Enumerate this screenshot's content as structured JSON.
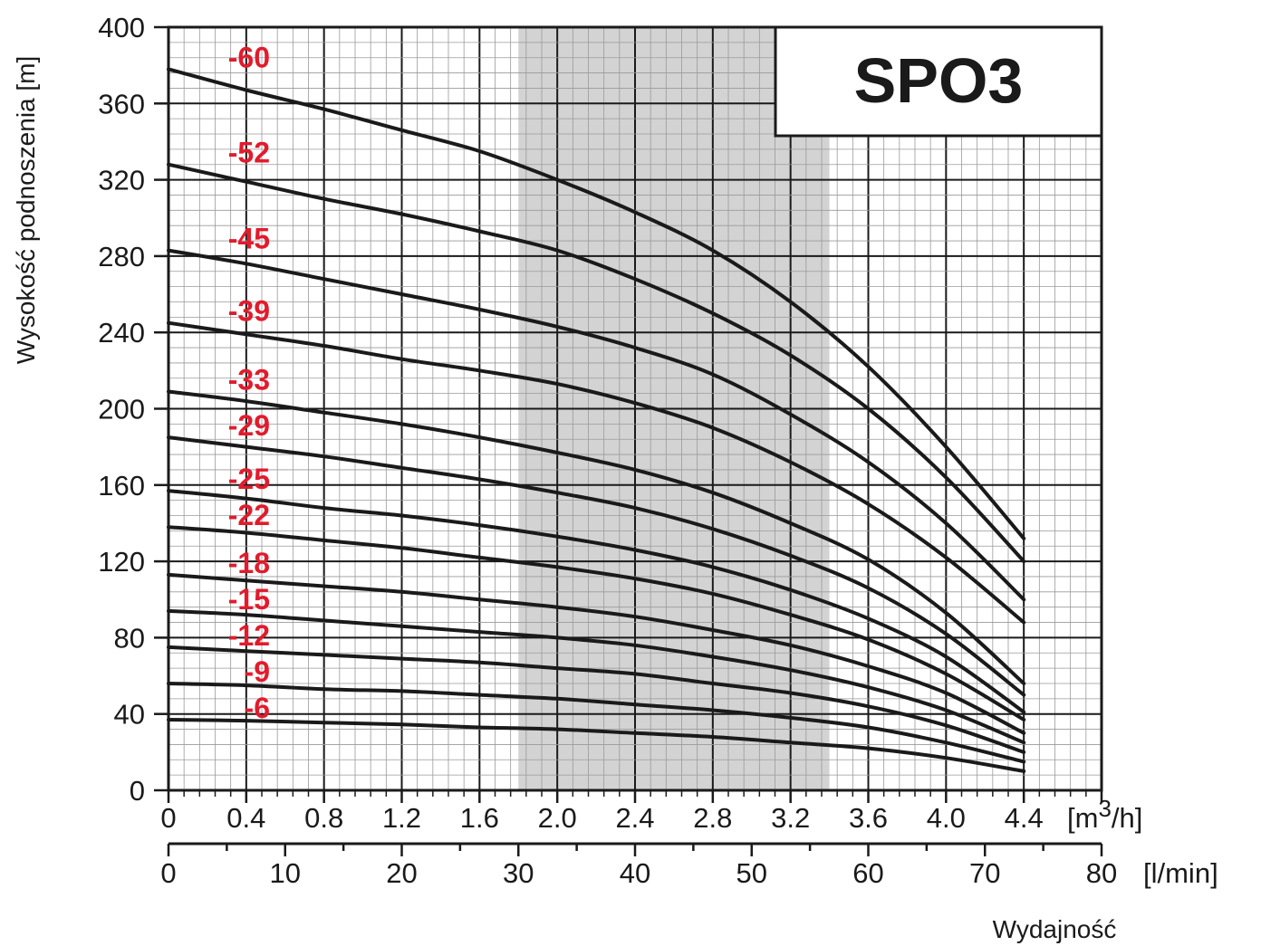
{
  "chart_data": {
    "type": "line",
    "title": "SPO3",
    "ylabel": "Wysokość podnoszenia [m]",
    "xlabel": "Wydajność",
    "x_unit_primary": "[m3/h]",
    "x_unit_secondary": "[l/min]",
    "xlim": [
      0,
      4.8
    ],
    "ylim": [
      0,
      400
    ],
    "x_ticks": [
      "0",
      "0.4",
      "0.8",
      "1.2",
      "1.6",
      "2.0",
      "2.4",
      "2.8",
      "3.2",
      "3.6",
      "4.0",
      "4.4"
    ],
    "x2_ticks": [
      "0",
      "10",
      "20",
      "30",
      "40",
      "50",
      "60",
      "70",
      "80"
    ],
    "y_ticks": [
      "0",
      "40",
      "80",
      "120",
      "160",
      "200",
      "240",
      "280",
      "320",
      "360",
      "400"
    ],
    "recommended_range": [
      1.8,
      3.4
    ],
    "grid": true,
    "colors": {
      "curve": "#1a1a1a",
      "label": "#e21b2c",
      "band": "#d3d3d3",
      "grid_major": "#1a1a1a",
      "grid_minor": "#9a9a9a"
    },
    "x": [
      0,
      0.4,
      0.8,
      1.2,
      1.6,
      2.0,
      2.4,
      2.8,
      3.2,
      3.6,
      4.0,
      4.4
    ],
    "series": [
      {
        "name": "-60",
        "values": [
          378,
          367,
          357,
          346,
          335,
          320,
          303,
          283,
          256,
          222,
          180,
          132
        ]
      },
      {
        "name": "-52",
        "values": [
          328,
          319,
          310,
          302,
          293,
          283,
          268,
          250,
          228,
          200,
          164,
          120
        ]
      },
      {
        "name": "-45",
        "values": [
          283,
          276,
          268,
          260,
          252,
          243,
          232,
          218,
          197,
          172,
          140,
          100
        ]
      },
      {
        "name": "-39",
        "values": [
          245,
          239,
          233,
          226,
          220,
          213,
          203,
          190,
          172,
          150,
          122,
          88
        ]
      },
      {
        "name": "-33",
        "values": [
          209,
          204,
          198,
          192,
          185,
          177,
          168,
          156,
          140,
          121,
          93,
          56
        ]
      },
      {
        "name": "-29",
        "values": [
          185,
          180,
          175,
          169,
          163,
          156,
          148,
          137,
          123,
          106,
          82,
          50
        ]
      },
      {
        "name": "-25",
        "values": [
          157,
          153,
          148,
          144,
          139,
          133,
          126,
          117,
          105,
          90,
          70,
          41
        ]
      },
      {
        "name": "-22",
        "values": [
          138,
          135,
          131,
          127,
          122,
          117,
          111,
          103,
          92,
          79,
          61,
          37
        ]
      },
      {
        "name": "-18",
        "values": [
          113,
          110,
          107,
          104,
          100,
          96,
          91,
          84,
          76,
          65,
          51,
          30
        ]
      },
      {
        "name": "-15",
        "values": [
          94,
          92,
          89,
          86,
          83,
          80,
          76,
          70,
          63,
          54,
          42,
          25
        ]
      },
      {
        "name": "-12",
        "values": [
          75,
          73,
          71,
          69,
          67,
          64,
          61,
          56,
          51,
          44,
          34,
          20
        ]
      },
      {
        "name": "-9",
        "values": [
          56,
          55,
          53,
          52,
          50,
          48,
          45,
          42,
          38,
          33,
          25,
          15
        ]
      },
      {
        "name": "-6",
        "values": [
          37,
          36.5,
          35.5,
          34.5,
          33,
          32,
          30,
          28,
          25,
          22,
          17,
          10
        ]
      }
    ]
  }
}
